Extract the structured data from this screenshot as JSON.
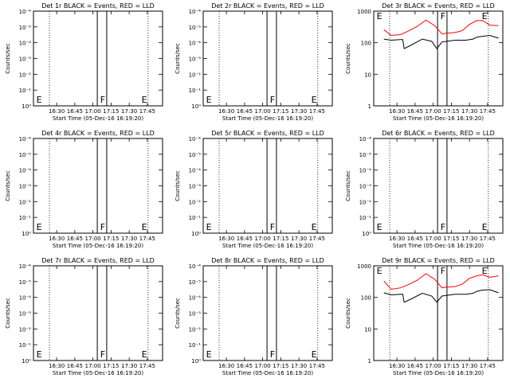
{
  "chart_data": [
    {
      "type": "line",
      "title": "Det 1r BLACK = Events, RED = LLD",
      "xlabel": "Start Time (05-Dec-16 16:19:20)",
      "ylabel": "Counts/sec",
      "log_scale": true,
      "ylim": [
        1,
        10000
      ],
      "y_ticks": [
        "10⁰",
        "10⁻¹",
        "10⁻²",
        "10⁻³",
        "10⁻⁴",
        "10⁻⁵",
        "10⁻⁴"
      ],
      "x_ticks": [
        "16:30",
        "16:45",
        "17:00",
        "17:15",
        "17:30",
        "17:45"
      ],
      "markers": [
        "E",
        "F",
        "E"
      ],
      "series": []
    },
    {
      "type": "line",
      "title": "Det 2r BLACK = Events, RED = LLD",
      "xlabel": "Start Time (05-Dec-16 16:19:20)",
      "ylabel": "Counts/sec",
      "log_scale": true,
      "ylim": [
        1,
        10000
      ],
      "y_ticks": [
        "10⁰",
        "10⁻¹",
        "10⁻²",
        "10⁻³",
        "10⁻⁴",
        "10⁻⁵",
        "10⁻⁴"
      ],
      "x_ticks": [
        "16:30",
        "16:45",
        "17:00",
        "17:15",
        "17:30",
        "17:45"
      ],
      "markers": [
        "E",
        "F",
        "E"
      ],
      "series": []
    },
    {
      "type": "line",
      "title": "Det 3r BLACK = Events, RED = LLD",
      "xlabel": "Start Time (05-Dec-16 16:19:20)",
      "ylabel": "Counts/sec",
      "log_scale": true,
      "ylim": [
        1,
        1000
      ],
      "y_ticks": [
        "1",
        "10",
        "100",
        "1000"
      ],
      "x_ticks": [
        "16:30",
        "16:45",
        "17:00",
        "17:15",
        "17:30",
        "17:45"
      ],
      "markers": [
        "E",
        "F",
        "E"
      ],
      "series": [
        {
          "color": "#ff0000",
          "x": [
            16.32,
            16.42,
            16.55,
            16.65,
            16.78,
            16.9,
            17.02,
            17.12,
            17.18,
            17.3,
            17.4,
            17.5,
            17.6,
            17.68,
            17.78,
            17.9
          ],
          "y": [
            260,
            170,
            180,
            230,
            330,
            520,
            350,
            190,
            200,
            210,
            240,
            380,
            500,
            510,
            360,
            350
          ]
        },
        {
          "color": "#000000",
          "x": [
            16.32,
            16.42,
            16.55,
            16.58,
            16.6,
            16.7,
            16.85,
            16.98,
            17.05,
            17.12,
            17.18,
            17.3,
            17.45,
            17.55,
            17.6,
            17.68,
            17.78,
            17.9
          ],
          "y": [
            130,
            120,
            125,
            125,
            65,
            85,
            130,
            110,
            65,
            105,
            110,
            120,
            120,
            130,
            150,
            160,
            170,
            140
          ]
        }
      ]
    },
    {
      "type": "line",
      "title": "Det 4r BLACK = Events, RED = LLD",
      "xlabel": "Start Time (05-Dec-16 16:19:20)",
      "ylabel": "Counts/sec",
      "log_scale": true,
      "ylim": [
        1,
        10000
      ],
      "y_ticks": [
        "10⁰",
        "10⁻¹",
        "10⁻²",
        "10⁻³",
        "10⁻⁴",
        "10⁻⁵",
        "10⁻⁴"
      ],
      "x_ticks": [
        "16:30",
        "16:45",
        "17:00",
        "17:15",
        "17:30",
        "17:45"
      ],
      "markers": [
        "E",
        "F",
        "E"
      ],
      "series": []
    },
    {
      "type": "line",
      "title": "Det 5r BLACK = Events, RED = LLD",
      "xlabel": "Start Time (05-Dec-16 16:19:20)",
      "ylabel": "Counts/sec",
      "log_scale": true,
      "ylim": [
        1,
        10000
      ],
      "y_ticks": [
        "10⁰",
        "10⁻¹",
        "10⁻²",
        "10⁻³",
        "10⁻⁴",
        "10⁻⁵",
        "10⁻⁴"
      ],
      "x_ticks": [
        "16:30",
        "16:45",
        "17:00",
        "17:15",
        "17:30",
        "17:45"
      ],
      "markers": [
        "E",
        "F",
        "E"
      ],
      "series": []
    },
    {
      "type": "line",
      "title": "Det 6r BLACK = Events, RED = LLD",
      "xlabel": "Start Time (05-Dec-16 16:19:20)",
      "ylabel": "Counts/sec",
      "log_scale": true,
      "ylim": [
        1,
        10000
      ],
      "y_ticks": [
        "10⁰",
        "10⁻¹",
        "10⁻²",
        "10⁻³",
        "10⁻⁴",
        "10⁻⁵",
        "10⁻⁴"
      ],
      "x_ticks": [
        "16:30",
        "16:45",
        "17:00",
        "17:15",
        "17:30",
        "17:45"
      ],
      "markers": [
        "E",
        "F",
        "E"
      ],
      "series": []
    },
    {
      "type": "line",
      "title": "Det 7r BLACK = Events, RED = LLD",
      "xlabel": "Start Time (05-Dec-16 16:19:20)",
      "ylabel": "Counts/sec",
      "log_scale": true,
      "ylim": [
        1,
        10000
      ],
      "y_ticks": [
        "10⁰",
        "10⁻¹",
        "10⁻²",
        "10⁻³",
        "10⁻⁴",
        "10⁻⁵",
        "10⁻⁴"
      ],
      "x_ticks": [
        "16:30",
        "16:45",
        "17:00",
        "17:15",
        "17:30",
        "17:45"
      ],
      "markers": [
        "E",
        "F",
        "E"
      ],
      "series": []
    },
    {
      "type": "line",
      "title": "Det 8r BLACK = Events, RED = LLD",
      "xlabel": "Start Time (05-Dec-16 16:19:20)",
      "ylabel": "Counts/sec",
      "log_scale": true,
      "ylim": [
        1,
        10000
      ],
      "y_ticks": [
        "10⁰",
        "10⁻¹",
        "10⁻²",
        "10⁻³",
        "10⁻⁴",
        "10⁻⁵",
        "10⁻⁴"
      ],
      "x_ticks": [
        "16:30",
        "16:45",
        "17:00",
        "17:15",
        "17:30",
        "17:45"
      ],
      "markers": [
        "E",
        "F",
        "E"
      ],
      "series": []
    },
    {
      "type": "line",
      "title": "Det 9r BLACK = Events, RED = LLD",
      "xlabel": "Start Time (05-Dec-16 16:19:20)",
      "ylabel": "Counts/sec",
      "log_scale": true,
      "ylim": [
        1,
        1000
      ],
      "y_ticks": [
        "1",
        "10",
        "100",
        "1000"
      ],
      "x_ticks": [
        "16:30",
        "16:45",
        "17:00",
        "17:15",
        "17:30",
        "17:45"
      ],
      "markers": [
        "E",
        "F",
        "E"
      ],
      "series": [
        {
          "color": "#ff0000",
          "x": [
            16.32,
            16.42,
            16.55,
            16.65,
            16.78,
            16.9,
            17.02,
            17.12,
            17.18,
            17.3,
            17.4,
            17.5,
            17.6,
            17.68,
            17.78,
            17.9
          ],
          "y": [
            330,
            180,
            200,
            250,
            350,
            560,
            380,
            200,
            210,
            220,
            260,
            400,
            480,
            520,
            430,
            480
          ]
        },
        {
          "color": "#000000",
          "x": [
            16.32,
            16.42,
            16.55,
            16.58,
            16.6,
            16.7,
            16.85,
            16.98,
            17.05,
            17.12,
            17.18,
            17.3,
            17.45,
            17.55,
            17.6,
            17.68,
            17.78,
            17.9
          ],
          "y": [
            140,
            120,
            125,
            125,
            70,
            90,
            135,
            110,
            70,
            110,
            115,
            125,
            125,
            135,
            155,
            170,
            175,
            140
          ]
        }
      ]
    }
  ]
}
